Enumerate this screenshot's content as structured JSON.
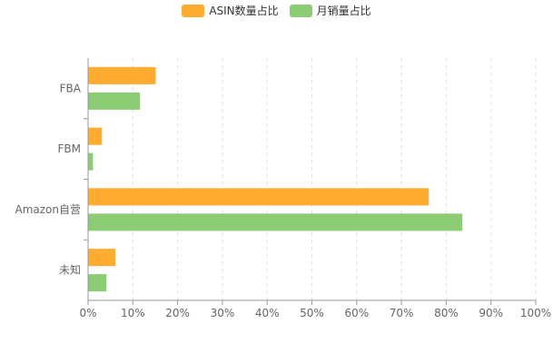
{
  "chart_data": {
    "type": "bar",
    "orientation": "horizontal",
    "categories": [
      "FBA",
      "FBM",
      "Amazon自营",
      "未知"
    ],
    "series": [
      {
        "name": "ASIN数量占比",
        "color": "#ffac30",
        "values": [
          15,
          3,
          76,
          6
        ]
      },
      {
        "name": "月销量占比",
        "color": "#8ccc74",
        "values": [
          11.5,
          1,
          83.5,
          4
        ]
      }
    ],
    "x_ticks": [
      "0%",
      "10%",
      "20%",
      "30%",
      "40%",
      "50%",
      "60%",
      "70%",
      "80%",
      "90%",
      "100%"
    ],
    "xlim": [
      0,
      100
    ],
    "grid": "vertical dashed",
    "legend": "top-center"
  }
}
